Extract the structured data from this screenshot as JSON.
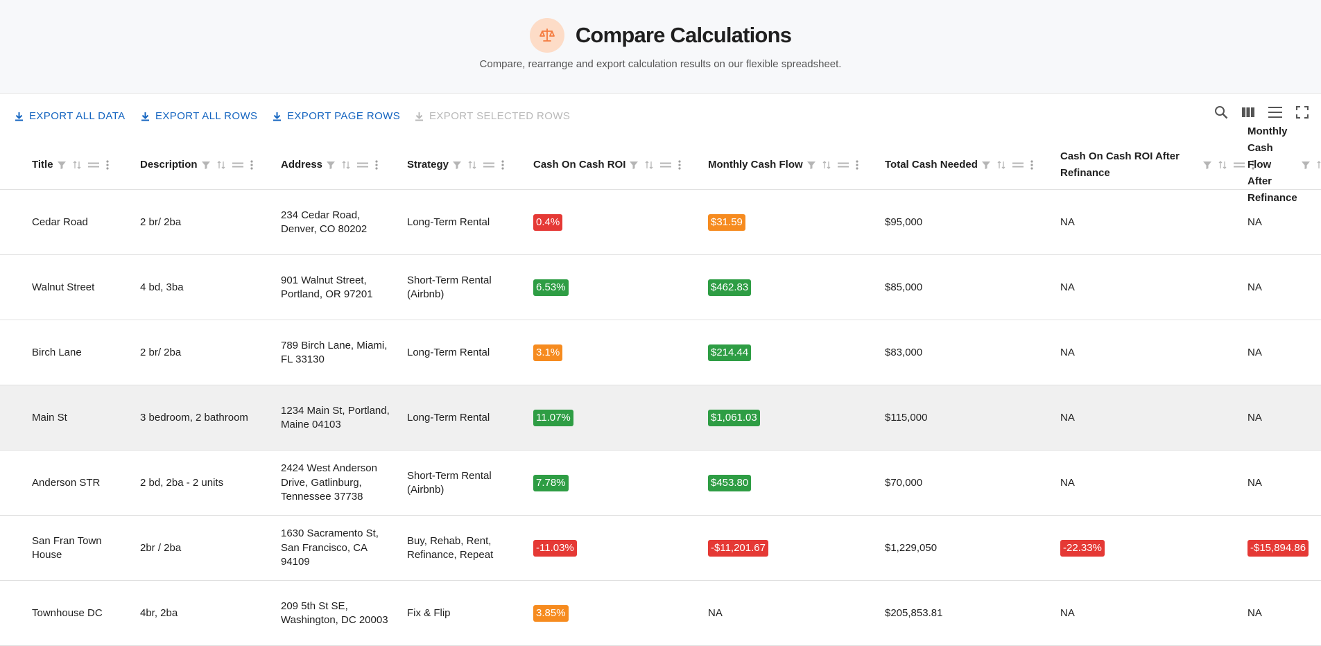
{
  "header": {
    "title": "Compare Calculations",
    "subtitle": "Compare, rearrange and export calculation results on our flexible spreadsheet.",
    "logo_icon": "scale-icon",
    "accent": "#f47b3f"
  },
  "toolbar": {
    "export_all_data": "EXPORT ALL DATA",
    "export_all_rows": "EXPORT ALL ROWS",
    "export_page_rows": "EXPORT PAGE ROWS",
    "export_selected_rows": "EXPORT SELECTED ROWS",
    "icons": [
      "search-icon",
      "columns-icon",
      "density-icon",
      "fullscreen-icon"
    ]
  },
  "columns": [
    {
      "label": "Title"
    },
    {
      "label": "Description"
    },
    {
      "label": "Address"
    },
    {
      "label": "Strategy"
    },
    {
      "label": "Cash On Cash ROI"
    },
    {
      "label": "Monthly Cash Flow"
    },
    {
      "label": "Total Cash Needed"
    },
    {
      "label": "Cash On Cash ROI After Refinance"
    },
    {
      "label": "Monthly Cash Flow After Refinance"
    }
  ],
  "rows": [
    {
      "title": "Cedar Road",
      "description": "2 br/ 2ba",
      "address": "234 Cedar Road, Denver, CO 80202",
      "strategy": "Long-Term Rental",
      "roi": "0.4%",
      "roi_color": "red",
      "cashflow": "$31.59",
      "cashflow_color": "orange",
      "total": "$95,000",
      "roi_refi": "NA",
      "roi_refi_color": "",
      "cashflow_refi": "NA",
      "cashflow_refi_color": ""
    },
    {
      "title": "Walnut Street",
      "description": "4 bd, 3ba",
      "address": "901 Walnut Street, Portland, OR 97201",
      "strategy": "Short-Term Rental (Airbnb)",
      "roi": "6.53%",
      "roi_color": "green",
      "cashflow": "$462.83",
      "cashflow_color": "green",
      "total": "$85,000",
      "roi_refi": "NA",
      "roi_refi_color": "",
      "cashflow_refi": "NA",
      "cashflow_refi_color": ""
    },
    {
      "title": "Birch Lane",
      "description": "2 br/ 2ba",
      "address": "789 Birch Lane, Miami, FL 33130",
      "strategy": "Long-Term Rental",
      "roi": "3.1%",
      "roi_color": "orange",
      "cashflow": "$214.44",
      "cashflow_color": "green",
      "total": "$83,000",
      "roi_refi": "NA",
      "roi_refi_color": "",
      "cashflow_refi": "NA",
      "cashflow_refi_color": ""
    },
    {
      "title": "Main St",
      "description": "3 bedroom, 2 bathroom",
      "address": "1234 Main St, Portland, Maine 04103",
      "strategy": "Long-Term Rental",
      "roi": "11.07%",
      "roi_color": "green",
      "cashflow": "$1,061.03",
      "cashflow_color": "green",
      "total": "$115,000",
      "roi_refi": "NA",
      "roi_refi_color": "",
      "cashflow_refi": "NA",
      "cashflow_refi_color": "",
      "highlight": true
    },
    {
      "title": "Anderson STR",
      "description": "2 bd, 2ba - 2 units",
      "address": "2424 West Anderson Drive, Gatlinburg, Tennessee 37738",
      "strategy": "Short-Term Rental (Airbnb)",
      "roi": "7.78%",
      "roi_color": "green",
      "cashflow": "$453.80",
      "cashflow_color": "green",
      "total": "$70,000",
      "roi_refi": "NA",
      "roi_refi_color": "",
      "cashflow_refi": "NA",
      "cashflow_refi_color": ""
    },
    {
      "title": "San Fran Town House",
      "description": "2br / 2ba",
      "address": "1630 Sacramento St, San Francisco, CA 94109",
      "strategy": "Buy, Rehab, Rent, Refinance, Repeat",
      "roi": "-11.03%",
      "roi_color": "red",
      "cashflow": "-$11,201.67",
      "cashflow_color": "red",
      "total": "$1,229,050",
      "roi_refi": "-22.33%",
      "roi_refi_color": "red",
      "cashflow_refi": "-$15,894.86",
      "cashflow_refi_color": "red"
    },
    {
      "title": "Townhouse DC",
      "description": "4br, 2ba",
      "address": "209 5th St SE, Washington, DC 20003",
      "strategy": "Fix & Flip",
      "roi": "3.85%",
      "roi_color": "orange",
      "cashflow": "NA",
      "cashflow_color": "",
      "total": "$205,853.81",
      "roi_refi": "NA",
      "roi_refi_color": "",
      "cashflow_refi": "NA",
      "cashflow_refi_color": ""
    }
  ]
}
